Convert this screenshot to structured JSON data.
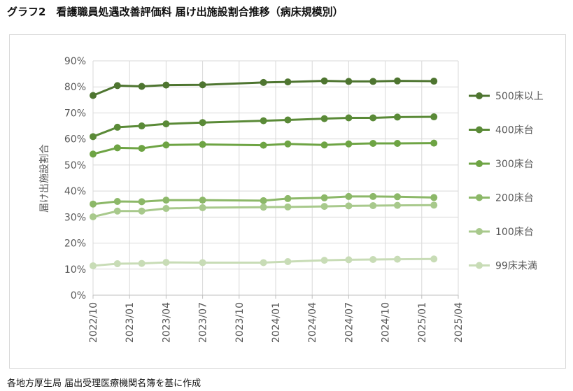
{
  "title": "グラフ2　看護職員処遇改善評価料 届け出施設割合推移（病床規模別）",
  "source": "各地方厚生局 届出受理医療機関名簿を基に作成",
  "chart_data": {
    "type": "line",
    "title": "グラフ2　看護職員処遇改善評価料 届け出施設割合推移（病床規模別）",
    "xlabel": "",
    "ylabel": "届け出施設割合",
    "ylim": [
      0,
      90
    ],
    "y_ticks": [
      "0%",
      "10%",
      "20%",
      "30%",
      "40%",
      "50%",
      "60%",
      "70%",
      "80%",
      "90%"
    ],
    "x_ticks": [
      "2022/10",
      "2023/01",
      "2023/04",
      "2023/07",
      "2023/10",
      "2024/01",
      "2024/04",
      "2024/07",
      "2024/10",
      "2025/01",
      "2025/04"
    ],
    "x_range": [
      "2022/10",
      "2025/04"
    ],
    "grid": true,
    "legend_position": "right",
    "x": [
      "2022/10",
      "2022/12",
      "2023/02",
      "2023/04",
      "2023/07",
      "2023/12",
      "2024/02",
      "2024/05",
      "2024/07",
      "2024/09",
      "2024/11",
      "2025/02"
    ],
    "series": [
      {
        "name": "500床以上",
        "color": "#4e7530",
        "values": [
          76.7,
          80.5,
          80.2,
          80.7,
          80.8,
          81.7,
          81.9,
          82.3,
          82.1,
          82.1,
          82.3,
          82.2
        ]
      },
      {
        "name": "400床台",
        "color": "#5a8a37",
        "values": [
          60.9,
          64.5,
          65.0,
          65.8,
          66.3,
          67.0,
          67.3,
          67.8,
          68.1,
          68.1,
          68.4,
          68.5
        ]
      },
      {
        "name": "300床台",
        "color": "#6ea444",
        "values": [
          54.2,
          56.6,
          56.4,
          57.7,
          57.9,
          57.6,
          58.1,
          57.7,
          58.1,
          58.3,
          58.3,
          58.4
        ]
      },
      {
        "name": "200床台",
        "color": "#8cb868",
        "values": [
          35.0,
          36.0,
          35.9,
          36.5,
          36.5,
          36.3,
          37.1,
          37.4,
          37.9,
          37.9,
          37.8,
          37.5
        ]
      },
      {
        "name": "100床台",
        "color": "#a8c98c",
        "values": [
          30.1,
          32.3,
          32.3,
          33.3,
          33.6,
          33.8,
          33.9,
          34.1,
          34.3,
          34.4,
          34.5,
          34.6
        ]
      },
      {
        "name": "99床未満",
        "color": "#c8dcb6",
        "values": [
          11.3,
          12.1,
          12.2,
          12.6,
          12.5,
          12.5,
          12.9,
          13.4,
          13.6,
          13.7,
          13.8,
          13.9
        ]
      }
    ]
  }
}
